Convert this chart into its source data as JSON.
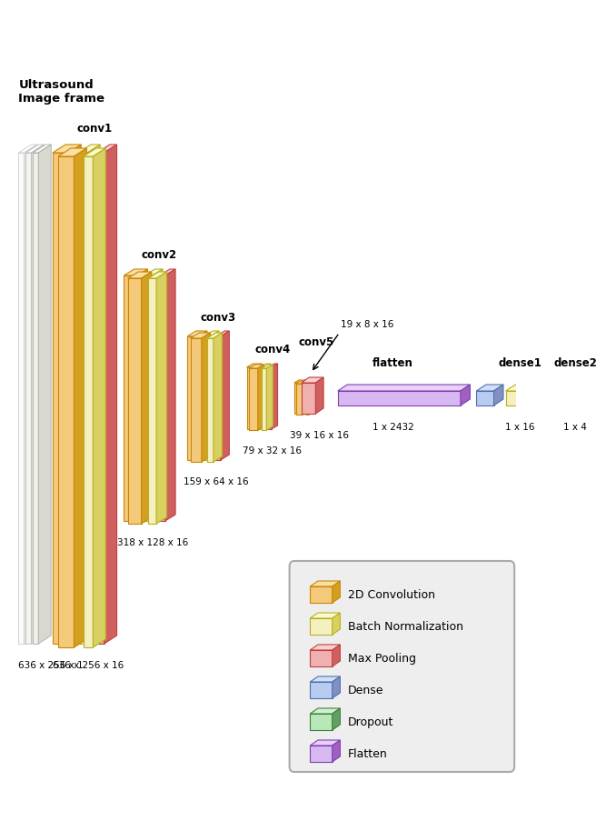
{
  "bg_color": "#ffffff",
  "conv_face": "#f5c97a",
  "conv_edge": "#c8860a",
  "conv_top": "#f9dfa0",
  "conv_right": "#d4a020",
  "bn_face": "#f5f0c0",
  "bn_edge": "#b8b020",
  "bn_top": "#fafad0",
  "bn_right": "#d8d060",
  "pool_face": "#f0b0b0",
  "pool_edge": "#c04040",
  "pool_top": "#f8d0d0",
  "pool_right": "#d06060",
  "dense_face": "#b8ccf0",
  "dense_edge": "#5070b0",
  "dense_top": "#d0e0f8",
  "dense_right": "#8090c0",
  "dropout_face": "#b8e8b8",
  "dropout_edge": "#408040",
  "dropout_top": "#d0f0d0",
  "dropout_right": "#60a060",
  "flatten_face": "#d8b8f0",
  "flatten_edge": "#8040b0",
  "flatten_top": "#e8d0f8",
  "flatten_right": "#a060c0",
  "input_face": "#f8f8f0",
  "input_edge": "#aaaaaa",
  "input_top": "#ffffff",
  "input_right": "#dddddd",
  "title_input": "Ultrasound\nImage frame",
  "label_input": "636 x 256 x 1",
  "label_conv1_out": "636 x 256 x 16",
  "label_conv2_out": "318 x 128 x 16",
  "label_conv3_out": "159 x 64 x 16",
  "label_conv4_out": "79 x 32 x 16",
  "label_conv5_out": "39 x 16 x 16",
  "label_conv5_top": "19 x 8 x 16",
  "label_flatten": "1 x 2432",
  "label_dense1": "1 x 16",
  "label_dense2": "1 x 4",
  "text_conv1": "conv1",
  "text_conv2": "conv2",
  "text_conv3": "conv3",
  "text_conv4": "conv4",
  "text_conv5": "conv5",
  "text_flatten": "flatten",
  "text_dense1": "dense1",
  "text_dense2": "dense2",
  "legend_items": [
    {
      "label": "2D Convolution",
      "face": "#f5c97a",
      "edge": "#c8860a",
      "top": "#f9dfa0",
      "right": "#d4a020"
    },
    {
      "label": "Batch Normalization",
      "face": "#f5f0c0",
      "edge": "#b8b020",
      "top": "#fafad0",
      "right": "#d8d060"
    },
    {
      "label": "Max Pooling",
      "face": "#f0b0b0",
      "edge": "#c04040",
      "top": "#f8d0d0",
      "right": "#d06060"
    },
    {
      "label": "Dense",
      "face": "#b8ccf0",
      "edge": "#5070b0",
      "top": "#d0e0f8",
      "right": "#8090c0"
    },
    {
      "label": "Dropout",
      "face": "#b8e8b8",
      "edge": "#408040",
      "top": "#d0f0d0",
      "right": "#60a060"
    },
    {
      "label": "Flatten",
      "face": "#d8b8f0",
      "edge": "#8040b0",
      "top": "#e8d0f8",
      "right": "#a060c0"
    }
  ]
}
